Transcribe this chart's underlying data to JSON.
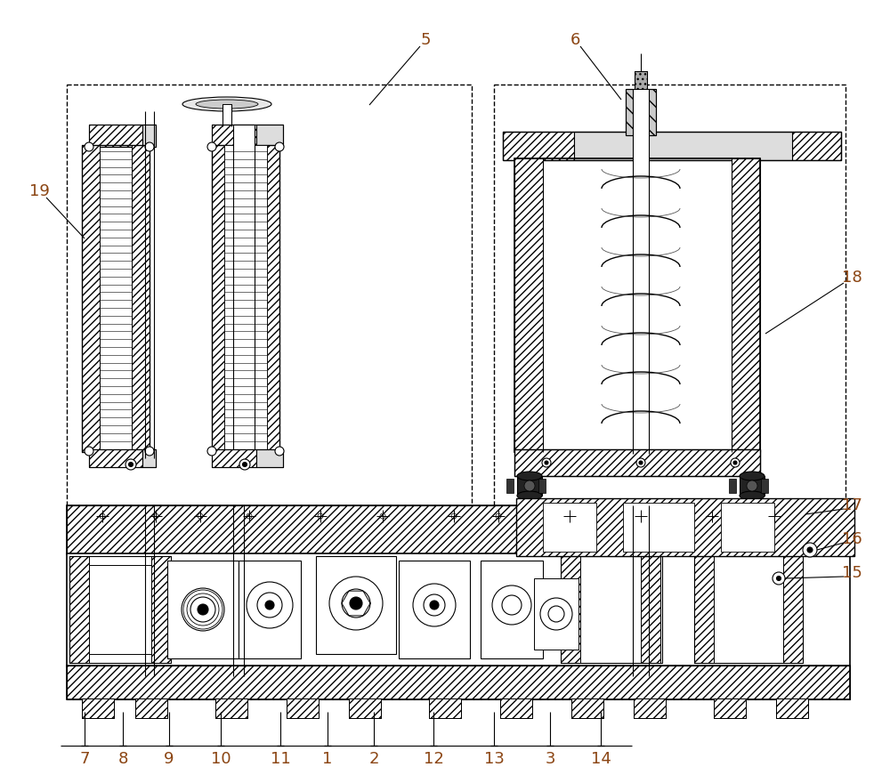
{
  "bg_color": "#ffffff",
  "line_color": "#000000",
  "label_color": "#8B4513",
  "fig_width": 10.0,
  "fig_height": 8.71,
  "dpi": 100,
  "bottom_labels": {
    "7": 95,
    "8": 138,
    "9": 190,
    "10": 248,
    "11": 315,
    "1": 368,
    "2": 420,
    "12": 487,
    "13": 555,
    "3": 618,
    "14": 675
  }
}
